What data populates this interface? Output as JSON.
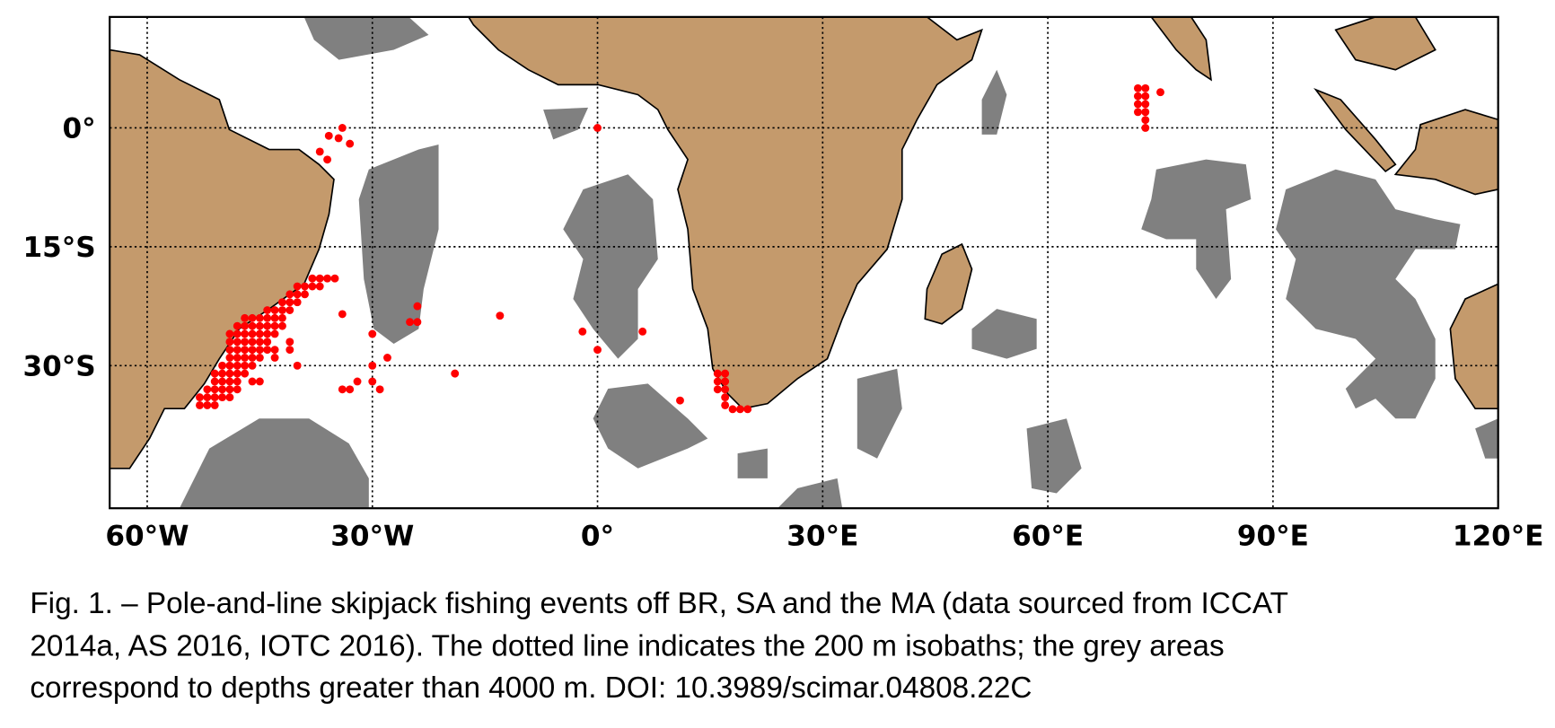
{
  "chart_data": {
    "type": "scatter",
    "color": "#ff0000",
    "grid": true,
    "xlim": [
      -65,
      120
    ],
    "ylim": [
      -48,
      14
    ],
    "xticks": [
      {
        "value": -60,
        "label": "60°W"
      },
      {
        "value": -30,
        "label": "30°W"
      },
      {
        "value": 0,
        "label": "0°"
      },
      {
        "value": 30,
        "label": "30°E"
      },
      {
        "value": 60,
        "label": "60°E"
      },
      {
        "value": 90,
        "label": "90°E"
      },
      {
        "value": 120,
        "label": "120°E"
      }
    ],
    "yticks": [
      {
        "value": 0,
        "label": "0°"
      },
      {
        "value": -15,
        "label": "15°S"
      },
      {
        "value": -30,
        "label": "30°S"
      }
    ],
    "points": [
      [
        -38,
        -19
      ],
      [
        -37,
        -19
      ],
      [
        -36,
        -19
      ],
      [
        -35,
        -19
      ],
      [
        -40,
        -20
      ],
      [
        -39,
        -20
      ],
      [
        -38,
        -20
      ],
      [
        -37,
        -20
      ],
      [
        -41,
        -21
      ],
      [
        -40,
        -21
      ],
      [
        -39,
        -21
      ],
      [
        -42,
        -22
      ],
      [
        -41,
        -22
      ],
      [
        -40,
        -22
      ],
      [
        -44,
        -23
      ],
      [
        -43,
        -23
      ],
      [
        -42,
        -23
      ],
      [
        -41,
        -23
      ],
      [
        -47,
        -24
      ],
      [
        -46,
        -24
      ],
      [
        -45,
        -24
      ],
      [
        -44,
        -24
      ],
      [
        -43,
        -24
      ],
      [
        -42,
        -24
      ],
      [
        -48,
        -25
      ],
      [
        -47,
        -25
      ],
      [
        -46,
        -25
      ],
      [
        -45,
        -25
      ],
      [
        -44,
        -25
      ],
      [
        -43,
        -25
      ],
      [
        -42,
        -25
      ],
      [
        -49,
        -26
      ],
      [
        -48,
        -26
      ],
      [
        -47,
        -26
      ],
      [
        -46,
        -26
      ],
      [
        -45,
        -26
      ],
      [
        -44,
        -26
      ],
      [
        -43,
        -26
      ],
      [
        -49,
        -27
      ],
      [
        -48,
        -27
      ],
      [
        -47,
        -27
      ],
      [
        -46,
        -27
      ],
      [
        -45,
        -27
      ],
      [
        -44,
        -27
      ],
      [
        -41,
        -27
      ],
      [
        -49,
        -28
      ],
      [
        -48,
        -28
      ],
      [
        -47,
        -28
      ],
      [
        -46,
        -28
      ],
      [
        -45,
        -28
      ],
      [
        -44,
        -28
      ],
      [
        -43,
        -28
      ],
      [
        -41,
        -28
      ],
      [
        -49,
        -29
      ],
      [
        -48,
        -29
      ],
      [
        -47,
        -29
      ],
      [
        -46,
        -29
      ],
      [
        -45,
        -29
      ],
      [
        -43,
        -29
      ],
      [
        -50,
        -30
      ],
      [
        -49,
        -30
      ],
      [
        -48,
        -30
      ],
      [
        -47,
        -30
      ],
      [
        -46,
        -30
      ],
      [
        -40,
        -30
      ],
      [
        -51,
        -31
      ],
      [
        -50,
        -31
      ],
      [
        -49,
        -31
      ],
      [
        -48,
        -31
      ],
      [
        -47,
        -31
      ],
      [
        -51,
        -32
      ],
      [
        -50,
        -32
      ],
      [
        -49,
        -32
      ],
      [
        -48,
        -32
      ],
      [
        -46,
        -32
      ],
      [
        -45,
        -32
      ],
      [
        -52,
        -33
      ],
      [
        -51,
        -33
      ],
      [
        -50,
        -33
      ],
      [
        -49,
        -33
      ],
      [
        -48,
        -33
      ],
      [
        -53,
        -34
      ],
      [
        -52,
        -34
      ],
      [
        -51,
        -34
      ],
      [
        -50,
        -34
      ],
      [
        -49,
        -34
      ],
      [
        -53,
        -35
      ],
      [
        -52,
        -35
      ],
      [
        -51,
        -35
      ],
      [
        -34,
        0
      ],
      [
        -35.8,
        -1
      ],
      [
        -34.5,
        -1.3
      ],
      [
        -33,
        -2
      ],
      [
        -37,
        -3
      ],
      [
        -36,
        -4
      ],
      [
        -34,
        -23.5
      ],
      [
        -30,
        -26
      ],
      [
        -24,
        -24.5
      ],
      [
        -25,
        -24.5
      ],
      [
        -24,
        -22.5
      ],
      [
        -28,
        -29
      ],
      [
        -30,
        -30
      ],
      [
        -30,
        -32
      ],
      [
        -32,
        -32
      ],
      [
        -34,
        -33
      ],
      [
        -33,
        -33
      ],
      [
        -29,
        -33
      ],
      [
        -19,
        -31
      ],
      [
        -13,
        -23.7
      ],
      [
        -2,
        -25.7
      ],
      [
        0,
        -28
      ],
      [
        6,
        -25.7
      ],
      [
        0,
        0
      ],
      [
        11,
        -34.4
      ],
      [
        16,
        -31
      ],
      [
        17,
        -31
      ],
      [
        16,
        -32
      ],
      [
        17,
        -32
      ],
      [
        16,
        -33
      ],
      [
        17,
        -33
      ],
      [
        17,
        -34
      ],
      [
        17,
        -35
      ],
      [
        18,
        -35.5
      ],
      [
        19,
        -35.5
      ],
      [
        20,
        -35.5
      ],
      [
        72,
        5
      ],
      [
        73,
        5
      ],
      [
        72,
        4
      ],
      [
        73,
        4
      ],
      [
        72,
        3
      ],
      [
        73,
        3
      ],
      [
        72,
        2
      ],
      [
        73,
        2
      ],
      [
        73,
        1
      ],
      [
        73,
        0
      ],
      [
        75,
        4.5
      ]
    ]
  },
  "caption": [
    "Fig. 1. – Pole-and-line skipjack fishing events off BR, SA and the MA (data sourced from ICCAT",
    "2014a, AS 2016, IOTC 2016). The dotted line indicates the 200 m isobaths; the grey areas",
    "correspond to depths greater than 4000 m. DOI: 10.3989/scimar.04808.22C"
  ]
}
